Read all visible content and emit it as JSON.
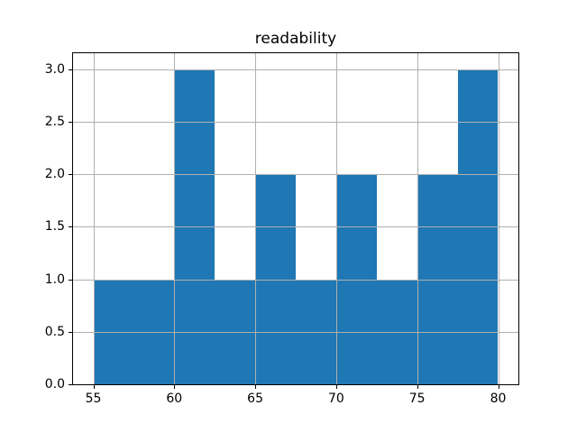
{
  "chart_data": {
    "type": "bar",
    "subtype": "histogram",
    "title": "readability",
    "xlabel": "",
    "ylabel": "",
    "bin_edges": [
      55,
      57.5,
      60,
      62.5,
      65,
      67.5,
      70,
      72.5,
      75,
      77.5,
      80
    ],
    "values": [
      1,
      1,
      3,
      1,
      2,
      1,
      2,
      1,
      2,
      3
    ],
    "xticks": [
      {
        "value": 55,
        "label": "55"
      },
      {
        "value": 60,
        "label": "60"
      },
      {
        "value": 65,
        "label": "65"
      },
      {
        "value": 70,
        "label": "70"
      },
      {
        "value": 75,
        "label": "75"
      },
      {
        "value": 80,
        "label": "80"
      }
    ],
    "yticks": [
      {
        "value": 0.0,
        "label": "0.0"
      },
      {
        "value": 0.5,
        "label": "0.5"
      },
      {
        "value": 1.0,
        "label": "1.0"
      },
      {
        "value": 1.5,
        "label": "1.5"
      },
      {
        "value": 2.0,
        "label": "2.0"
      },
      {
        "value": 2.5,
        "label": "2.5"
      },
      {
        "value": 3.0,
        "label": "3.0"
      }
    ],
    "xlim": [
      53.75,
      81.25
    ],
    "ylim": [
      0,
      3.15
    ],
    "grid": true,
    "grid_over_bars": true,
    "legend": null,
    "bar_color": "#1f77b4",
    "grid_color": "#b0b0b0",
    "spine_color": "#000000",
    "background_color": "#ffffff"
  }
}
